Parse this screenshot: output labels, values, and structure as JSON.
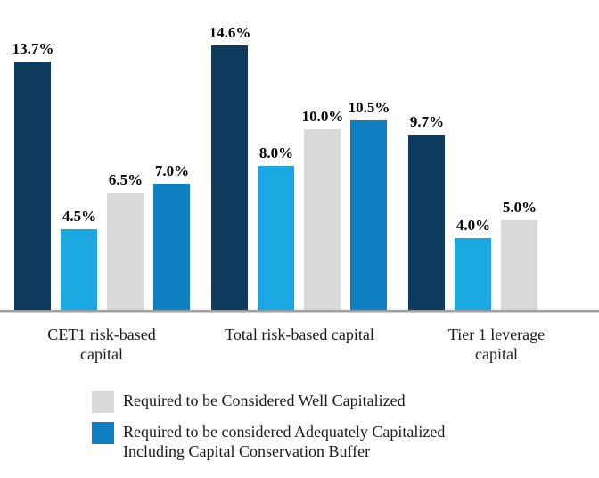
{
  "chart_data": {
    "type": "bar",
    "title": "",
    "unit": "%",
    "ylim": [
      0,
      15
    ],
    "grid": false,
    "axis_line_color": "#9e9e9e",
    "colors": {
      "navy": "#0e3a5e",
      "cyan": "#1ba7e1",
      "gray": "#d9d9d9",
      "blue": "#107fc1"
    },
    "groups": [
      {
        "category": "CET1 risk-based capital",
        "category_lines": [
          "CET1 risk-based",
          "capital"
        ],
        "bars": [
          {
            "value": 13.7,
            "label": "13.7%",
            "color": "navy"
          },
          {
            "value": 4.5,
            "label": "4.5%",
            "color": "cyan"
          },
          {
            "value": 6.5,
            "label": "6.5%",
            "color": "gray"
          },
          {
            "value": 7.0,
            "label": "7.0%",
            "color": "blue"
          }
        ]
      },
      {
        "category": "Total risk-based capital",
        "category_lines": [
          "Total risk-based capital"
        ],
        "bars": [
          {
            "value": 14.6,
            "label": "14.6%",
            "color": "navy"
          },
          {
            "value": 8.0,
            "label": "8.0%",
            "color": "cyan"
          },
          {
            "value": 10.0,
            "label": "10.0%",
            "color": "gray"
          },
          {
            "value": 10.5,
            "label": "10.5%",
            "color": "blue"
          }
        ]
      },
      {
        "category": "Tier 1 leverage capital",
        "category_lines": [
          "Tier 1 leverage",
          "capital"
        ],
        "bars": [
          {
            "value": 9.7,
            "label": "9.7%",
            "color": "navy"
          },
          {
            "value": 4.0,
            "label": "4.0%",
            "color": "cyan"
          },
          {
            "value": 5.0,
            "label": "5.0%",
            "color": "gray"
          }
        ]
      }
    ],
    "legend": {
      "position": "bottom",
      "items": [
        {
          "color": "gray",
          "label": "Required to be Considered Well Capitalized"
        },
        {
          "color": "blue",
          "label": "Required to be considered Adequately Capitalized Including Capital Conservation Buffer"
        }
      ]
    }
  }
}
